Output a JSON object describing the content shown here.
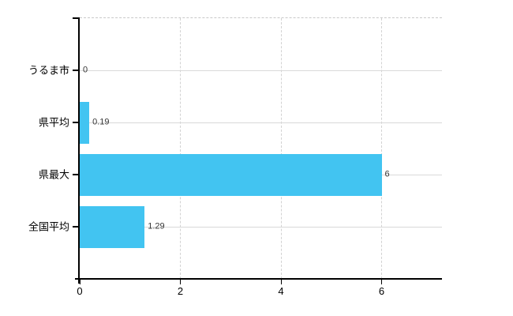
{
  "chart_data": {
    "type": "bar",
    "orientation": "horizontal",
    "title": "",
    "xlabel": "",
    "ylabel": "",
    "categories": [
      "うるま市",
      "県平均",
      "県最大",
      "全国平均"
    ],
    "values": [
      0,
      0.19,
      6,
      1.29
    ],
    "value_labels": [
      "0",
      "0.19",
      "6",
      "1.29"
    ],
    "x_ticks": [
      0,
      2,
      4,
      6
    ],
    "x_tick_labels": [
      "0",
      "2",
      "4",
      "6"
    ],
    "xlim": [
      0,
      7.2
    ],
    "grid": true,
    "legend": false,
    "colors": {
      "bar": "#42c4f1",
      "h_gridline": "#d9d9d9",
      "v_gridline": "#d2d2d2",
      "axis": "#000000",
      "tick_text": "#000000",
      "value_text": "#363636",
      "background": "#ffffff"
    }
  }
}
